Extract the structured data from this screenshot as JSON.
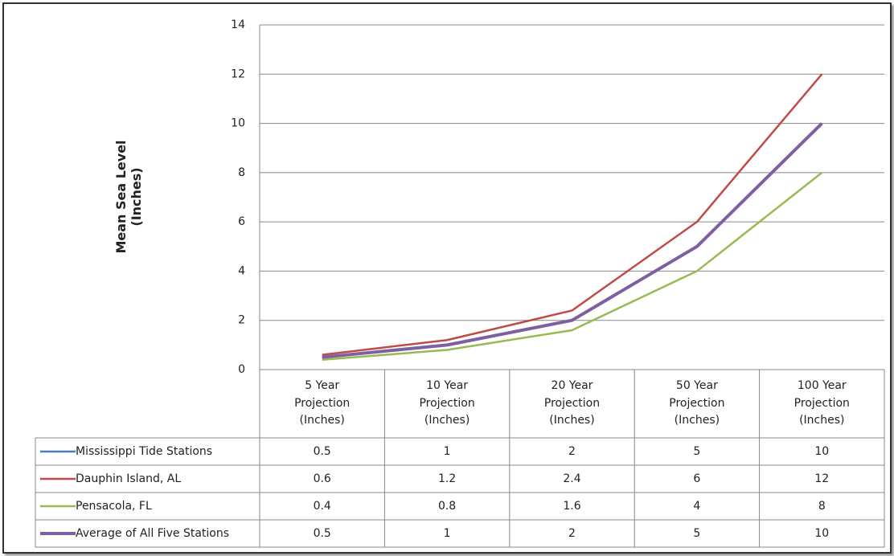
{
  "chart_data": {
    "type": "line",
    "ylabel": "Mean Sea Level (Inches)",
    "categories": [
      "5 Year Projection (Inches)",
      "10 Year Projection (Inches)",
      "20 Year Projection (Inches)",
      "50 Year Projection (Inches)",
      "100 Year Projection (Inches)"
    ],
    "series": [
      {
        "name": "Mississippi Tide Stations",
        "color": "#4a7ebb",
        "values": [
          0.5,
          1,
          2,
          5,
          10
        ]
      },
      {
        "name": "Dauphin Island, AL",
        "color": "#be4b48",
        "values": [
          0.6,
          1.2,
          2.4,
          6,
          12
        ]
      },
      {
        "name": "Pensacola, FL",
        "color": "#98b954",
        "values": [
          0.4,
          0.8,
          1.6,
          4,
          8
        ]
      },
      {
        "name": "Average of All Five Stations",
        "color": "#7d60a0",
        "values": [
          0.5,
          1,
          2,
          5,
          10
        ]
      }
    ],
    "ylim": [
      0,
      14
    ],
    "yticks": [
      0,
      2,
      4,
      6,
      8,
      10,
      12,
      14
    ],
    "grid": true,
    "data_table": true
  }
}
